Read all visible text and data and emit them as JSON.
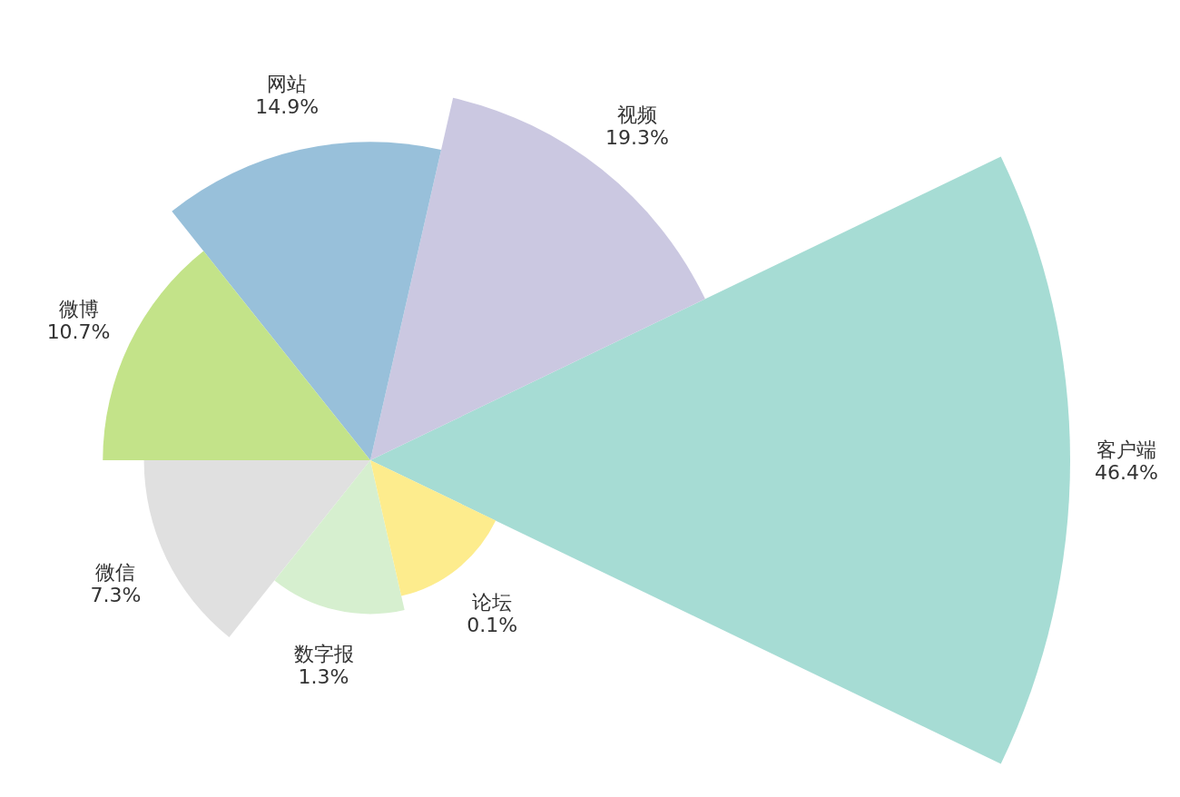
{
  "chart_data": {
    "type": "other",
    "categories": [
      "客户端",
      "视频",
      "网站",
      "微博",
      "微信",
      "数字报",
      "论坛"
    ],
    "values": [
      46.4,
      19.3,
      14.9,
      10.7,
      7.3,
      1.3,
      0.1
    ],
    "value_labels": [
      "46.4%",
      "19.3%",
      "14.9%",
      "10.7%",
      "7.3%",
      "1.3%",
      "0.1%"
    ],
    "colors": [
      "#a6dcd4",
      "#cbc8e1",
      "#98c0da",
      "#c3e389",
      "#e0e0e0",
      "#d6efcf",
      "#fdec8d"
    ]
  }
}
